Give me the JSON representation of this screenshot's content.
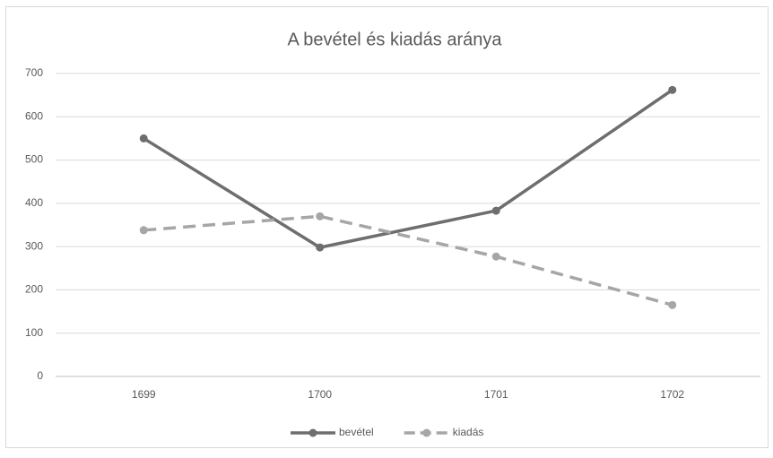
{
  "chart_data": {
    "type": "line",
    "title": "A bevétel és kiadás aránya",
    "categories": [
      "1699",
      "1700",
      "1701",
      "1702"
    ],
    "series": [
      {
        "name": "bevétel",
        "color": "#6e6e6e",
        "line_style": "solid",
        "values": [
          550,
          298,
          383,
          662
        ]
      },
      {
        "name": "kiadás",
        "color": "#a6a6a6",
        "line_style": "dashed",
        "values": [
          338,
          370,
          277,
          165
        ]
      }
    ],
    "ylim": [
      0,
      700
    ],
    "yticks": [
      0,
      100,
      200,
      300,
      400,
      500,
      600,
      700
    ],
    "grid": true,
    "legend": "bottom"
  }
}
